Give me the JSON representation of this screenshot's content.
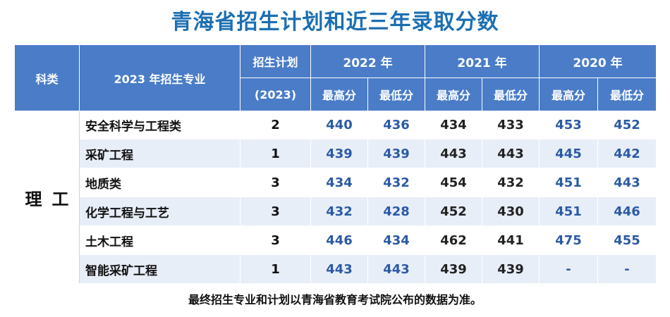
{
  "title": "青海省招生计划和近三年录取分数",
  "header": {
    "category": "科类",
    "major": "2023 年招生专业",
    "plan_line1": "招生计划",
    "plan_line2": "(2023)",
    "years": [
      "2022 年",
      "2021 年",
      "2020 年"
    ],
    "max_label": "最高分",
    "min_label": "最低分"
  },
  "category": "理工",
  "rows": [
    {
      "major": "安全科学与工程类",
      "plan": "2",
      "s2022": [
        "440",
        "436"
      ],
      "s2021": [
        "434",
        "433"
      ],
      "s2020": [
        "453",
        "452"
      ]
    },
    {
      "major": "采矿工程",
      "plan": "1",
      "s2022": [
        "439",
        "439"
      ],
      "s2021": [
        "443",
        "443"
      ],
      "s2020": [
        "445",
        "442"
      ]
    },
    {
      "major": "地质类",
      "plan": "3",
      "s2022": [
        "434",
        "432"
      ],
      "s2021": [
        "454",
        "432"
      ],
      "s2020": [
        "451",
        "443"
      ]
    },
    {
      "major": "化学工程与工艺",
      "plan": "3",
      "s2022": [
        "432",
        "428"
      ],
      "s2021": [
        "452",
        "430"
      ],
      "s2020": [
        "451",
        "446"
      ]
    },
    {
      "major": "土木工程",
      "plan": "3",
      "s2022": [
        "446",
        "434"
      ],
      "s2021": [
        "462",
        "441"
      ],
      "s2020": [
        "475",
        "455"
      ]
    },
    {
      "major": "智能采矿工程",
      "plan": "1",
      "s2022": [
        "443",
        "443"
      ],
      "s2021": [
        "439",
        "439"
      ],
      "s2020": [
        "-",
        "-"
      ]
    }
  ],
  "footnote": "最终招生专业和计划以青海省教育考试院公布的数据为准。"
}
